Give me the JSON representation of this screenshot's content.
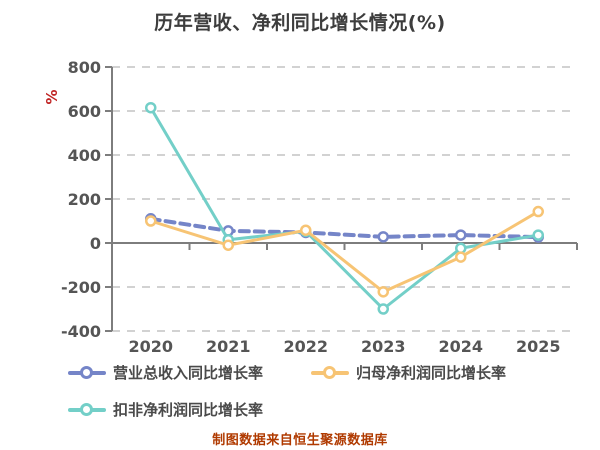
{
  "title": "历年营收、净利同比增长情况(%)",
  "footer": "制图数据来自恒生聚源数据库",
  "colors": {
    "title": "#3d3d3d",
    "axis_line": "#7d7d7d",
    "gridline": "#d2d2d2",
    "tick_label": "#555555",
    "legend_text": "#4a4a4a",
    "axis_name": "#c02323",
    "footer": "#b03a00"
  },
  "chart_data": {
    "type": "line",
    "title": "历年营收、净利同比增长情况(%)",
    "ylabel": "%",
    "xlabel": "",
    "categories": [
      "2020",
      "2021",
      "2022",
      "2023",
      "2024",
      "2025"
    ],
    "series": [
      {
        "name": "营业总收入同比增长率",
        "color": "#7585c8",
        "style": "dashed",
        "values": [
          110,
          55,
          48,
          28,
          36,
          27
        ]
      },
      {
        "name": "归母净利润同比增长率",
        "color": "#f7c474",
        "style": "solid",
        "values": [
          100,
          -10,
          58,
          -222,
          -64,
          143
        ]
      },
      {
        "name": "扣非净利润同比增长率",
        "color": "#73cfc8",
        "style": "solid",
        "values": [
          615,
          15,
          53,
          -300,
          -24,
          36
        ]
      }
    ],
    "ylim": [
      -400,
      800
    ],
    "yticks": [
      800,
      600,
      400,
      200,
      0,
      -200,
      -400
    ],
    "grid": true,
    "gridline_style": "dashed",
    "x_axis_line_at_zero": true,
    "legend_position": "bottom",
    "marker": "circle-white-fill"
  }
}
